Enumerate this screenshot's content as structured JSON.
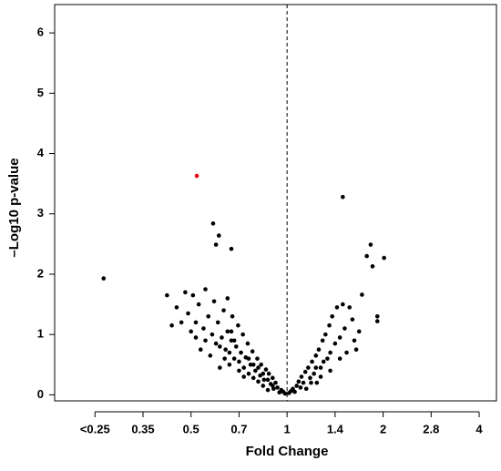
{
  "chart_data": {
    "type": "scatter",
    "x_label": "Fold Change",
    "y_label": "–Log10 p-value",
    "xlim": [
      -2.42,
      2.18
    ],
    "ylim": [
      -0.1,
      6.47
    ],
    "xticks": [
      {
        "value": -2,
        "label": "<0.25"
      },
      {
        "value": -1.5,
        "label": "0.35"
      },
      {
        "value": -1,
        "label": "0.5"
      },
      {
        "value": -0.5,
        "label": "0.7"
      },
      {
        "value": 0,
        "label": "1"
      },
      {
        "value": 0.5,
        "label": "1.4"
      },
      {
        "value": 1,
        "label": "2"
      },
      {
        "value": 1.5,
        "label": "2.8"
      },
      {
        "value": 2,
        "label": "4"
      }
    ],
    "yticks": [
      0,
      1,
      2,
      3,
      4,
      5,
      6
    ],
    "reference_x": 0,
    "series": [
      {
        "color": "#000000",
        "x": [
          -0.02,
          -0.04,
          -0.06,
          -0.08,
          -0.1,
          -0.12,
          -0.14,
          -0.15,
          -0.17,
          -0.19,
          -0.2,
          -0.22,
          -0.24,
          -0.25,
          -0.27,
          -0.28,
          -0.3,
          -0.31,
          -0.33,
          -0.35,
          -0.36,
          -0.38,
          -0.4,
          -0.41,
          -0.43,
          -0.45,
          -0.46,
          -0.48,
          -0.5,
          -0.51,
          -0.53,
          -0.55,
          -0.57,
          -0.58,
          -0.6,
          -0.62,
          -0.64,
          -0.66,
          -0.68,
          -0.7,
          -0.72,
          -0.74,
          -0.76,
          -0.78,
          -0.8,
          -0.82,
          -0.85,
          -0.87,
          -0.9,
          -0.92,
          -0.95,
          -0.98,
          -1.0,
          -1.03,
          -1.06,
          -1.1,
          -1.15,
          -1.2,
          -1.25,
          -0.7,
          -0.6,
          -0.55,
          -0.45,
          -0.35,
          -0.77,
          -0.71,
          -0.74,
          -0.58,
          -1.91,
          -0.25,
          -0.3,
          -0.2,
          -0.15,
          -0.4,
          -0.5,
          -0.65,
          -0.85,
          -0.95,
          -0.62,
          -0.58,
          0.02,
          0.04,
          0.06,
          0.08,
          0.1,
          0.12,
          0.14,
          0.15,
          0.17,
          0.19,
          0.2,
          0.22,
          0.24,
          0.26,
          0.28,
          0.3,
          0.31,
          0.33,
          0.35,
          0.37,
          0.38,
          0.4,
          0.42,
          0.44,
          0.45,
          0.47,
          0.5,
          0.52,
          0.55,
          0.58,
          0.6,
          0.62,
          0.65,
          0.68,
          0.7,
          0.72,
          0.75,
          0.25,
          0.35,
          0.45,
          0.55,
          0.3,
          0.58,
          0.87,
          0.83,
          0.89,
          1.01,
          0.78,
          0.94,
          0.94
        ],
        "y": [
          0.02,
          0.05,
          0.08,
          0.04,
          0.12,
          0.2,
          0.1,
          0.28,
          0.18,
          0.35,
          0.08,
          0.42,
          0.25,
          0.15,
          0.5,
          0.32,
          0.22,
          0.6,
          0.4,
          0.28,
          0.72,
          0.5,
          0.35,
          0.85,
          0.62,
          0.45,
          1.0,
          0.7,
          0.55,
          1.15,
          0.8,
          0.6,
          1.3,
          0.9,
          0.7,
          1.05,
          0.75,
          1.4,
          0.95,
          0.8,
          1.2,
          0.85,
          1.55,
          1.0,
          0.65,
          1.3,
          1.75,
          1.1,
          0.75,
          1.5,
          1.2,
          1.65,
          1.05,
          1.35,
          1.7,
          1.2,
          1.45,
          1.15,
          1.65,
          0.45,
          0.5,
          0.9,
          0.3,
          0.5,
          2.84,
          2.64,
          2.49,
          2.42,
          1.93,
          0.35,
          0.45,
          0.25,
          0.15,
          0.6,
          0.4,
          0.6,
          0.9,
          0.95,
          1.6,
          1.05,
          0.03,
          0.06,
          0.1,
          0.05,
          0.15,
          0.22,
          0.12,
          0.3,
          0.2,
          0.38,
          0.1,
          0.45,
          0.28,
          0.55,
          0.35,
          0.65,
          0.2,
          0.75,
          0.45,
          0.9,
          0.55,
          1.0,
          0.6,
          1.15,
          0.7,
          1.3,
          0.85,
          1.45,
          0.95,
          1.5,
          1.1,
          0.7,
          1.45,
          1.25,
          0.9,
          0.75,
          1.05,
          0.2,
          0.3,
          0.4,
          0.6,
          0.45,
          3.28,
          2.49,
          2.3,
          2.13,
          2.27,
          1.66,
          1.3,
          1.22
        ]
      },
      {
        "color": "#e8000b",
        "x": [
          -0.94
        ],
        "y": [
          3.63
        ]
      }
    ]
  }
}
